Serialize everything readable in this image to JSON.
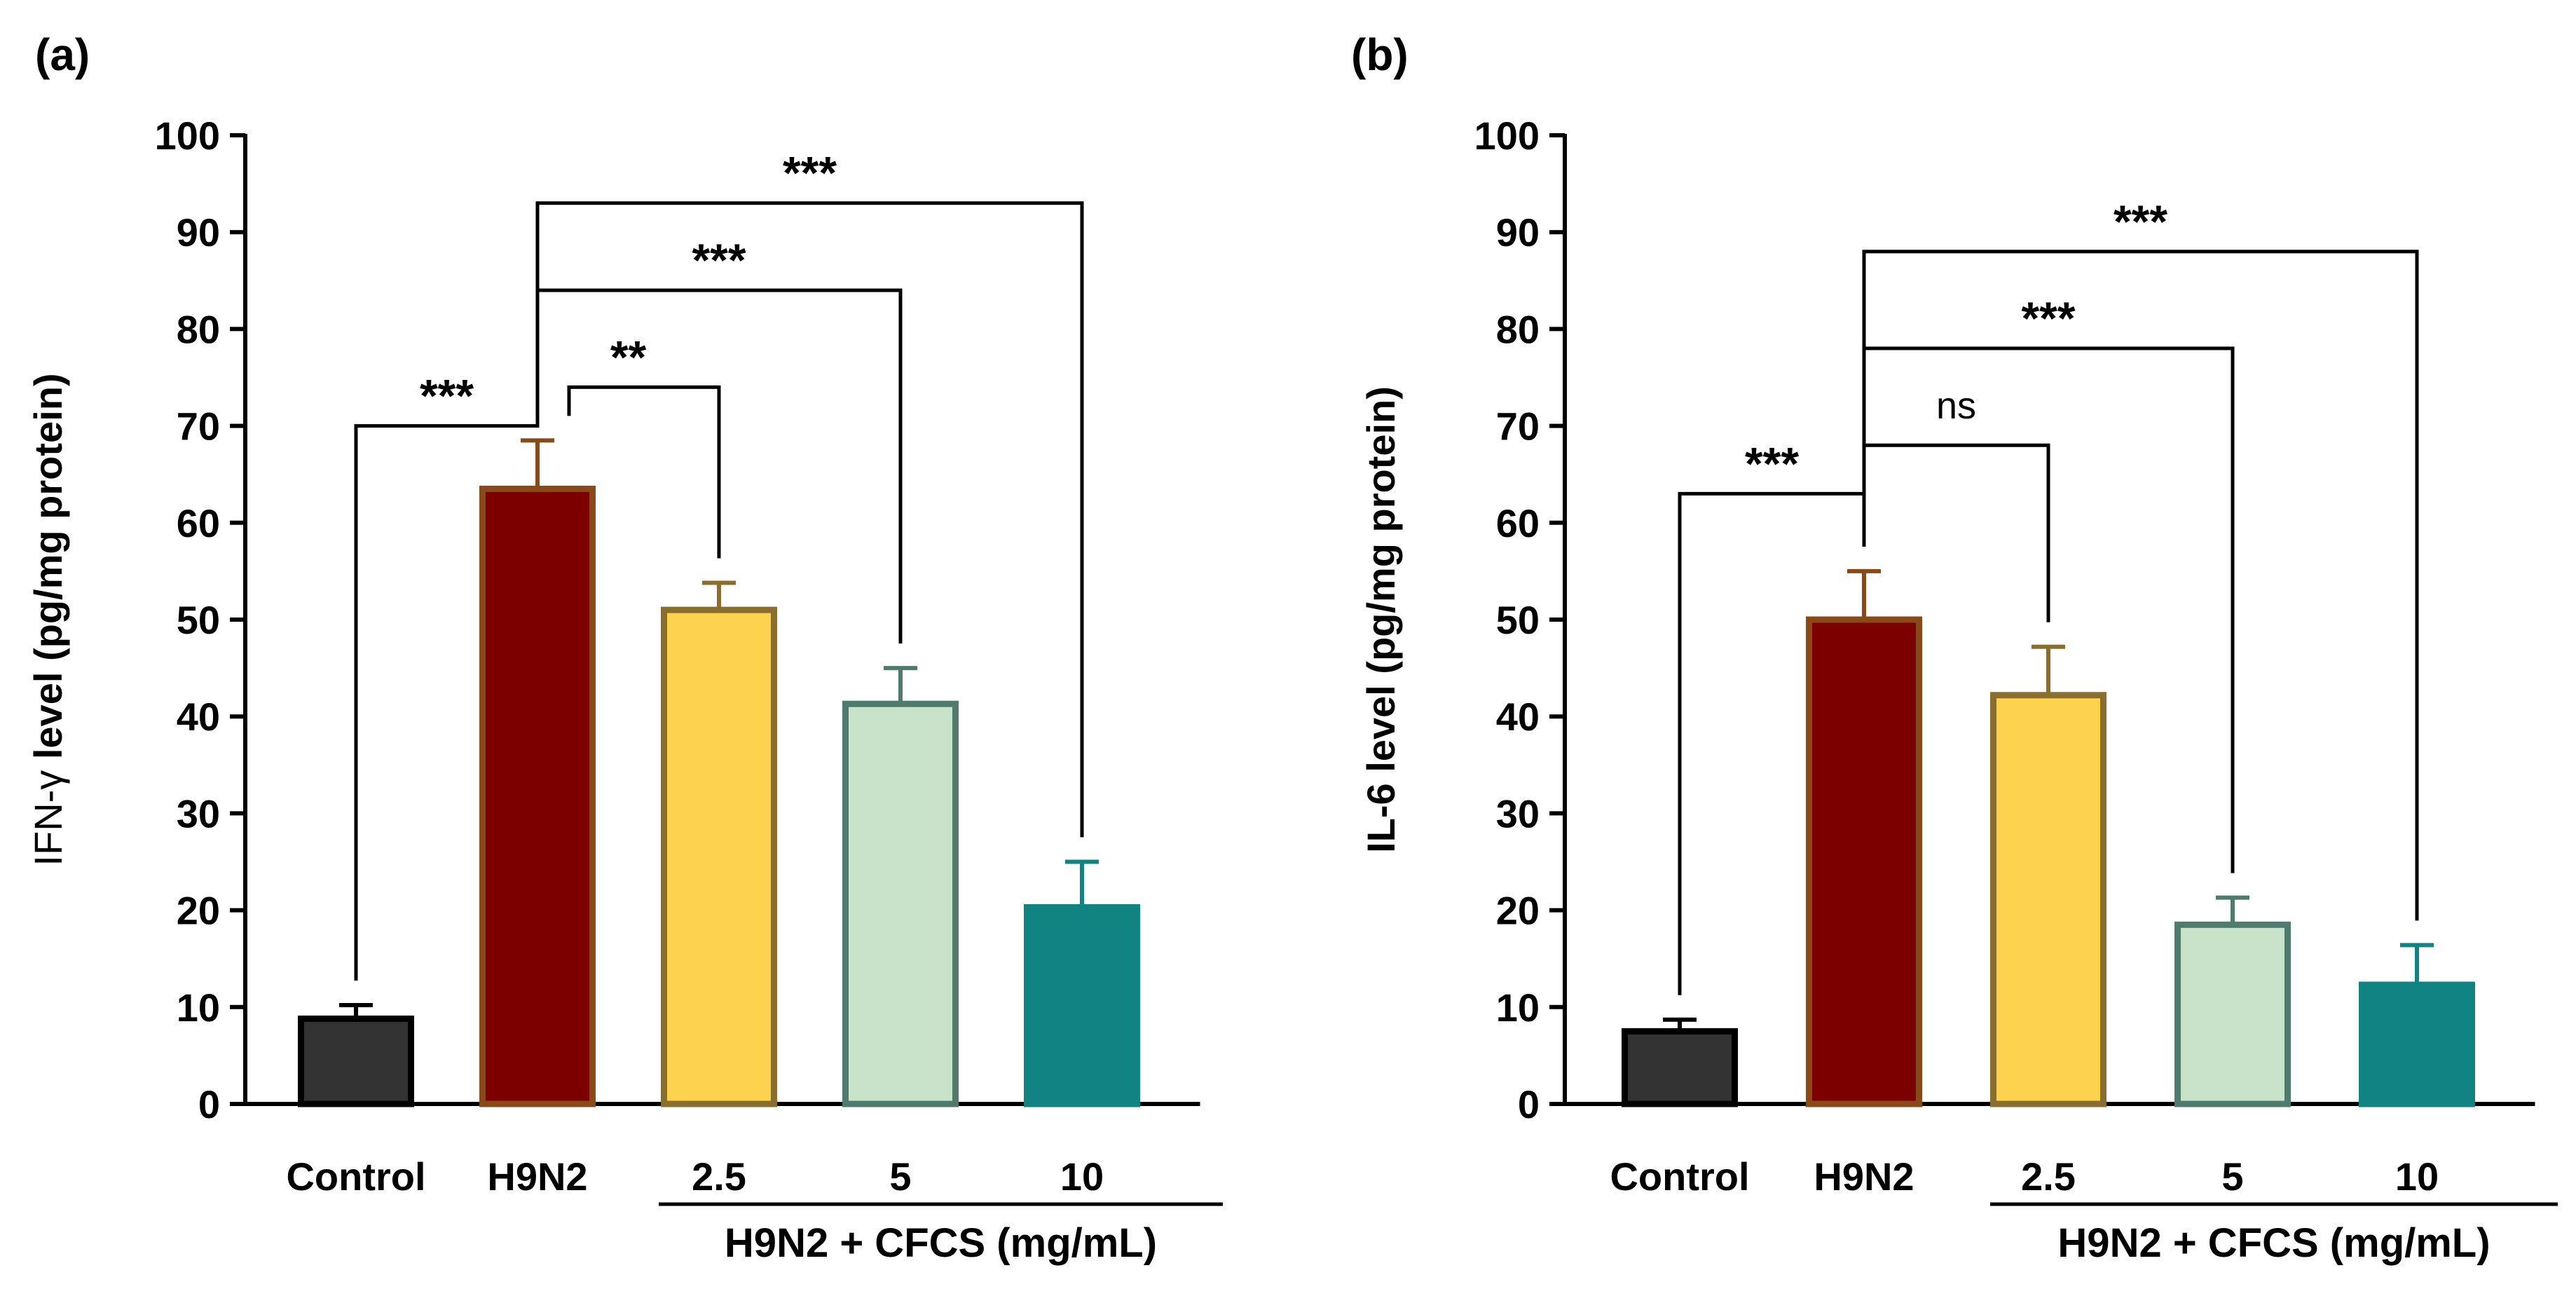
{
  "chart_data": [
    {
      "type": "bar",
      "panel_label": "(a)",
      "ylabel_prefix": "IFN-γ",
      "ylabel_rest": " level (pg/mg protein)",
      "ylim": [
        0,
        100
      ],
      "yticks": [
        "0",
        "10",
        "20",
        "30",
        "40",
        "50",
        "60",
        "70",
        "80",
        "90",
        "100"
      ],
      "categories": [
        "Control",
        "H9N2",
        "2.5",
        "5",
        "10"
      ],
      "group_label": "H9N2 + CFCS (mg/mL)",
      "values": [
        8.8,
        63.5,
        51,
        41.3,
        20.3
      ],
      "errors": [
        1.4,
        5,
        2.8,
        3.7,
        4.7
      ],
      "fill_colors": [
        "#333333",
        "#7c0000",
        "#fdd24f",
        "#c8e3c9",
        "#128383"
      ],
      "edge_colors": [
        "#000000",
        "#8a4a18",
        "#8a6e2e",
        "#4f7a6e",
        "#128383"
      ],
      "comparisons": [
        {
          "from": 0,
          "to": 1,
          "label": "***",
          "level": 70
        },
        {
          "from": 1,
          "to": 2,
          "label": "**",
          "level": 74
        },
        {
          "from": 1,
          "to": 3,
          "label": "***",
          "level": 84
        },
        {
          "from": 1,
          "to": 4,
          "label": "***",
          "level": 93
        }
      ]
    },
    {
      "type": "bar",
      "panel_label": "(b)",
      "ylabel_prefix": "",
      "ylabel_rest": "IL-6 level (pg/mg protein)",
      "ylim": [
        0,
        100
      ],
      "yticks": [
        "0",
        "10",
        "20",
        "30",
        "40",
        "50",
        "60",
        "70",
        "80",
        "90",
        "100"
      ],
      "categories": [
        "Control",
        "H9N2",
        "2.5",
        "5",
        "10"
      ],
      "group_label": "H9N2 + CFCS (mg/mL)",
      "values": [
        7.5,
        50,
        42.2,
        18.5,
        12.3
      ],
      "errors": [
        1.2,
        5,
        5,
        2.8,
        4.1
      ],
      "fill_colors": [
        "#333333",
        "#7c0000",
        "#fdd24f",
        "#c8e3c9",
        "#128383"
      ],
      "edge_colors": [
        "#000000",
        "#8a4a18",
        "#8a6e2e",
        "#4f7a6e",
        "#128383"
      ],
      "comparisons": [
        {
          "from": 0,
          "to": 1,
          "label": "***",
          "level": 63
        },
        {
          "from": 1,
          "to": 2,
          "label": "ns",
          "level": 68
        },
        {
          "from": 1,
          "to": 3,
          "label": "***",
          "level": 78
        },
        {
          "from": 1,
          "to": 4,
          "label": "***",
          "level": 88
        }
      ]
    }
  ]
}
